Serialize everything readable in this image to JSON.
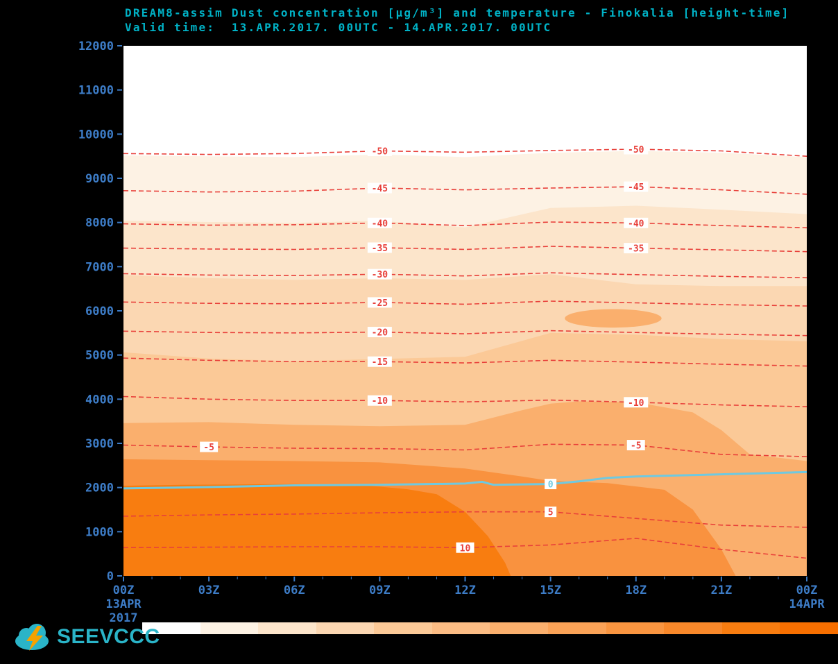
{
  "header": {
    "title": "DREAM8-assim Dust concentration [µg/m³] and temperature - Finokalia [height-time]",
    "subtitle": "Valid time:  13.APR.2017. 00UTC - 14.APR.2017. 00UTC"
  },
  "logo": {
    "text": "SEEVCCC"
  },
  "chart_data": {
    "type": "heatmap",
    "title": "DREAM8-assim Dust concentration [µg/m³] and temperature - Finokalia [height-time]",
    "subtitle": "Valid time:  13.APR.2017. 00UTC - 14.APR.2017. 00UTC",
    "station": "Finokalia",
    "model": "DREAM8-assim",
    "units": "µg/m³",
    "ylim": [
      0,
      12000
    ],
    "y_tick_step": 1000,
    "xlim_hours": [
      0,
      24
    ],
    "x_ticks": [
      {
        "hour": 0,
        "label": "00Z"
      },
      {
        "hour": 3,
        "label": "03Z"
      },
      {
        "hour": 6,
        "label": "06Z"
      },
      {
        "hour": 9,
        "label": "09Z"
      },
      {
        "hour": 12,
        "label": "12Z"
      },
      {
        "hour": 15,
        "label": "15Z"
      },
      {
        "hour": 18,
        "label": "18Z"
      },
      {
        "hour": 21,
        "label": "21Z"
      },
      {
        "hour": 24,
        "label": "00Z"
      }
    ],
    "x_sub_labels": [
      {
        "hour": 0,
        "lines": [
          "13APR",
          "2017"
        ]
      },
      {
        "hour": 24,
        "lines": [
          "14APR"
        ]
      }
    ],
    "axis_color": "#3d7cc6",
    "temp_line_color": "#e8403a",
    "zero_line_color": "#6fc9e0",
    "sample_hours": [
      0,
      3,
      6,
      9,
      12,
      15,
      18,
      21,
      24
    ],
    "dust_bands": [
      {
        "color": "#fdf2e4",
        "points": [
          [
            0,
            9520
          ],
          [
            3,
            9500
          ],
          [
            6,
            9480
          ],
          [
            9,
            9540
          ],
          [
            12,
            9480
          ],
          [
            15,
            9580
          ],
          [
            18,
            9620
          ],
          [
            21,
            9580
          ],
          [
            24,
            9480
          ]
        ]
      },
      {
        "color": "#fce5cb",
        "points": [
          [
            0,
            8040
          ],
          [
            3,
            8010
          ],
          [
            6,
            7990
          ],
          [
            9,
            8040
          ],
          [
            12,
            7890
          ],
          [
            15,
            8330
          ],
          [
            18,
            8380
          ],
          [
            21,
            8290
          ],
          [
            24,
            8190
          ]
        ]
      },
      {
        "color": "#fbd7b2",
        "points": [
          [
            0,
            6810
          ],
          [
            3,
            6740
          ],
          [
            6,
            6700
          ],
          [
            9,
            6740
          ],
          [
            12,
            6700
          ],
          [
            15,
            6830
          ],
          [
            18,
            6600
          ],
          [
            21,
            6560
          ],
          [
            24,
            6560
          ]
        ]
      },
      {
        "color": "#fbc997",
        "points": [
          [
            0,
            5060
          ],
          [
            3,
            4920
          ],
          [
            6,
            4860
          ],
          [
            9,
            4910
          ],
          [
            12,
            4960
          ],
          [
            15,
            5500
          ],
          [
            18,
            5460
          ],
          [
            21,
            5360
          ],
          [
            24,
            5310
          ]
        ]
      },
      {
        "color": "#faaf6d",
        "points": [
          [
            0,
            3460
          ],
          [
            3,
            3480
          ],
          [
            6,
            3420
          ],
          [
            9,
            3390
          ],
          [
            12,
            3420
          ],
          [
            14,
            3750
          ],
          [
            15,
            3900
          ],
          [
            16,
            3950
          ],
          [
            18,
            3930
          ],
          [
            20,
            3700
          ],
          [
            21,
            3300
          ],
          [
            22,
            2750
          ],
          [
            24,
            2600
          ]
        ]
      },
      {
        "color": "#f9923f",
        "points": [
          [
            0,
            2640
          ],
          [
            3,
            2620
          ],
          [
            6,
            2600
          ],
          [
            9,
            2570
          ],
          [
            12,
            2430
          ],
          [
            14,
            2250
          ],
          [
            15,
            2150
          ],
          [
            17,
            2100
          ],
          [
            19,
            1950
          ],
          [
            20,
            1500
          ],
          [
            21,
            600
          ],
          [
            21.5,
            0
          ]
        ]
      },
      {
        "color": "#f87d10",
        "points": [
          [
            0,
            2040
          ],
          [
            2,
            2060
          ],
          [
            4,
            2070
          ],
          [
            6,
            2080
          ],
          [
            8,
            2060
          ],
          [
            9,
            2020
          ],
          [
            10,
            1960
          ],
          [
            11,
            1850
          ],
          [
            12,
            1450
          ],
          [
            12.8,
            900
          ],
          [
            13.4,
            300
          ],
          [
            13.6,
            0
          ]
        ]
      }
    ],
    "dust_patches": [
      {
        "shape": "ellipse",
        "cx": 17.2,
        "cy": 5830,
        "rx": 1.7,
        "ry": 210,
        "color": "#faaf6d"
      }
    ],
    "temp_contours": [
      {
        "label": "-50",
        "heights": [
          9560,
          9540,
          9560,
          9620,
          9590,
          9630,
          9660,
          9620,
          9500
        ],
        "label_at": [
          9,
          18
        ]
      },
      {
        "label": "-45",
        "heights": [
          8720,
          8690,
          8710,
          8780,
          8740,
          8780,
          8810,
          8740,
          8640
        ],
        "label_at": [
          9,
          18
        ]
      },
      {
        "label": "-40",
        "heights": [
          7970,
          7940,
          7950,
          7990,
          7930,
          8010,
          7990,
          7930,
          7880
        ],
        "label_at": [
          9,
          18
        ]
      },
      {
        "label": "-35",
        "heights": [
          7420,
          7400,
          7390,
          7430,
          7390,
          7460,
          7420,
          7380,
          7340
        ],
        "label_at": [
          9,
          18
        ]
      },
      {
        "label": "-30",
        "heights": [
          6840,
          6810,
          6800,
          6830,
          6790,
          6860,
          6820,
          6780,
          6750
        ],
        "label_at": [
          9
        ]
      },
      {
        "label": "-25",
        "heights": [
          6200,
          6170,
          6160,
          6190,
          6150,
          6220,
          6180,
          6140,
          6110
        ],
        "label_at": [
          9
        ]
      },
      {
        "label": "-20",
        "heights": [
          5540,
          5510,
          5500,
          5520,
          5480,
          5550,
          5510,
          5470,
          5440
        ],
        "label_at": [
          9
        ]
      },
      {
        "label": "-15",
        "heights": [
          4930,
          4880,
          4850,
          4850,
          4820,
          4880,
          4840,
          4790,
          4750
        ],
        "label_at": [
          9
        ]
      },
      {
        "label": "-10",
        "heights": [
          4060,
          4000,
          3970,
          3970,
          3940,
          3980,
          3930,
          3870,
          3830
        ],
        "label_at": [
          9,
          18
        ]
      },
      {
        "label": "-5",
        "heights": [
          2960,
          2920,
          2890,
          2880,
          2850,
          2980,
          2960,
          2750,
          2700
        ],
        "label_at": [
          3,
          18
        ]
      },
      {
        "label": "5",
        "heights": [
          1350,
          1380,
          1400,
          1430,
          1450,
          1450,
          1300,
          1150,
          1100
        ],
        "label_at": [
          15
        ]
      },
      {
        "label": "10",
        "heights": [
          640,
          650,
          660,
          660,
          640,
          700,
          850,
          600,
          400
        ],
        "label_at": [
          12
        ]
      }
    ],
    "zero_isotherm": {
      "label": "0",
      "points": [
        [
          0,
          1980
        ],
        [
          3,
          2010
        ],
        [
          6,
          2050
        ],
        [
          9,
          2060
        ],
        [
          12,
          2090
        ],
        [
          12.6,
          2130
        ],
        [
          13,
          2060
        ],
        [
          15,
          2080
        ],
        [
          16,
          2140
        ],
        [
          17,
          2220
        ],
        [
          18,
          2250
        ],
        [
          21,
          2300
        ],
        [
          24,
          2350
        ]
      ],
      "label_at": 15
    },
    "colorbar": {
      "colors": [
        "#ffffff",
        "#fdf2e4",
        "#fce5cb",
        "#fbd7b2",
        "#fbc997",
        "#fbbc84",
        "#faaf6d",
        "#faa257",
        "#f99540",
        "#f8882a",
        "#f87d10",
        "#f76f00"
      ]
    }
  }
}
